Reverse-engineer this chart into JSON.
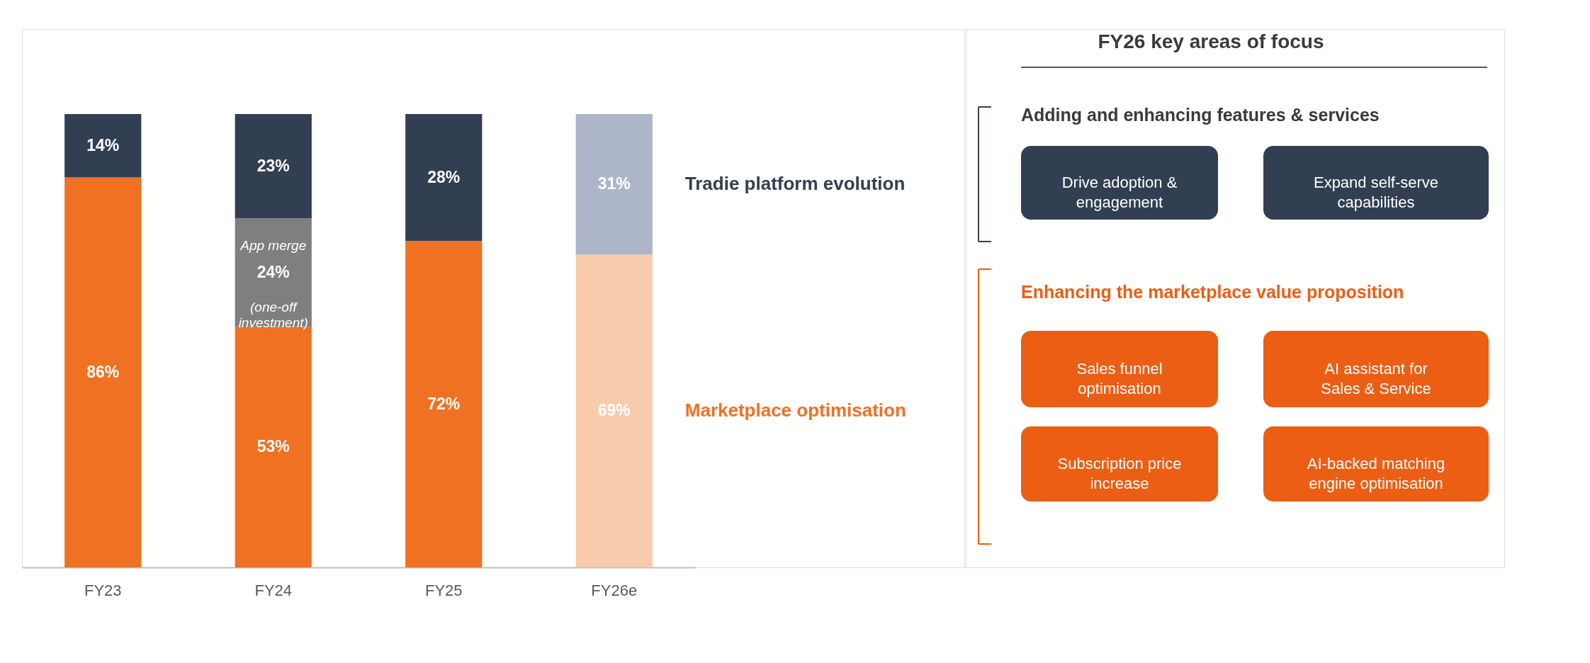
{
  "chart_data": [
    {
      "type": "bar",
      "stacked": true,
      "categories": [
        "FY23",
        "FY24",
        "FY25",
        "FY26e"
      ],
      "ylim": [
        0,
        100
      ],
      "tick_labels": "x",
      "series": [
        {
          "name": "Marketplace optimisation",
          "color": "#f07122",
          "colors": [
            "#f07122",
            "#f07122",
            "#f07122",
            "#f8cbad"
          ],
          "values": [
            86,
            53,
            72,
            69
          ],
          "value_labels": [
            "86%",
            "53%",
            "72%",
            "69%"
          ]
        },
        {
          "color": "#7f7f7f",
          "values": [
            null,
            24,
            null,
            null
          ],
          "value_labels": [
            null,
            "24%",
            null,
            null
          ]
        },
        {
          "name": "Tradie platform evolution",
          "color": "#323f52",
          "colors": [
            "#323f52",
            "#323f52",
            "#323f52",
            "#adb6c8"
          ],
          "values": [
            14,
            23,
            28,
            31
          ],
          "value_labels": [
            "14%",
            "23%",
            "28%",
            "31%"
          ]
        }
      ],
      "annotations": [
        "App merge",
        "(one-off investment)"
      ]
    },
    {
      "type": "other",
      "title": "FY26 key areas of focus",
      "annotations": [
        "Adding and enhancing features & services",
        "Drive adoption & engagement",
        "Expand self-serve capabilities",
        "Enhancing the marketplace value proposition",
        "Sales funnel optimisation",
        "AI assistant for Sales & Service",
        "Subscription price increase",
        "AI-backed matching engine optimisation"
      ]
    }
  ]
}
